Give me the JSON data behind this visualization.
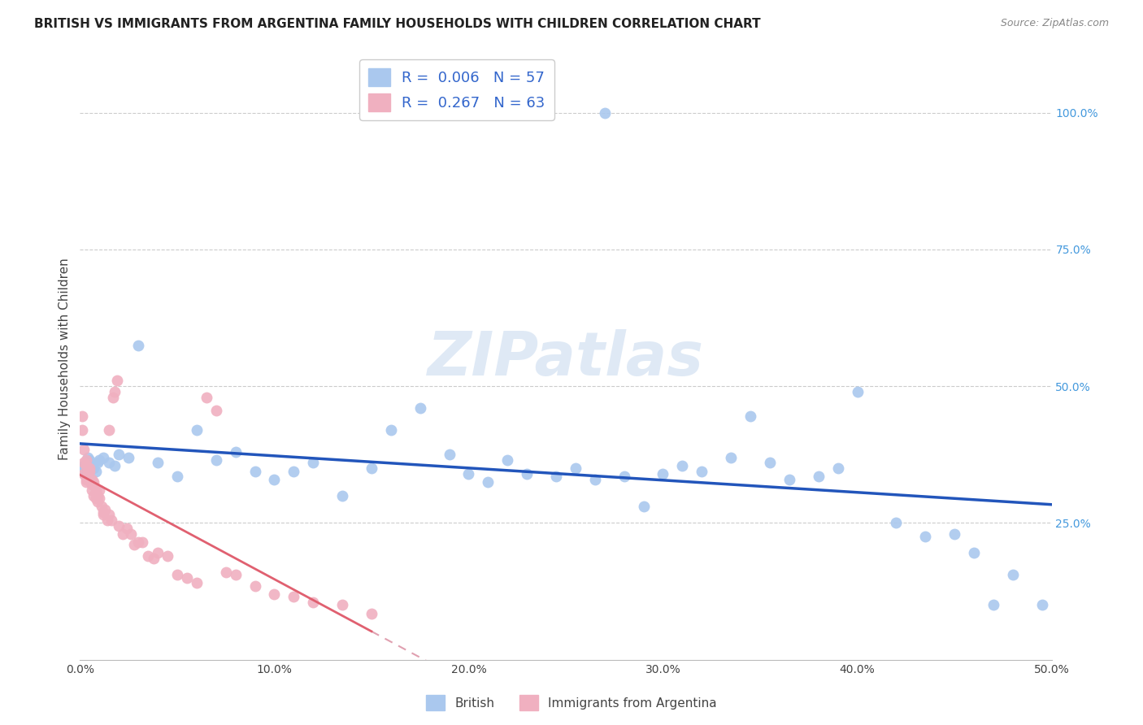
{
  "title": "BRITISH VS IMMIGRANTS FROM ARGENTINA FAMILY HOUSEHOLDS WITH CHILDREN CORRELATION CHART",
  "source": "Source: ZipAtlas.com",
  "ylabel": "Family Households with Children",
  "watermark": "ZIPatlas",
  "xlim": [
    0.0,
    0.5
  ],
  "ylim": [
    0.0,
    1.1
  ],
  "british_color": "#aac8ee",
  "argentina_color": "#f0b0c0",
  "british_line_color": "#2255bb",
  "argentina_line_color": "#e06070",
  "argentina_dash_color": "#e0a0b0",
  "background_color": "#ffffff",
  "grid_color": "#cccccc",
  "british_x": [
    0.001,
    0.002,
    0.003,
    0.004,
    0.005,
    0.006,
    0.007,
    0.008,
    0.009,
    0.01,
    0.012,
    0.015,
    0.018,
    0.02,
    0.025,
    0.03,
    0.04,
    0.05,
    0.06,
    0.07,
    0.08,
    0.09,
    0.1,
    0.11,
    0.12,
    0.135,
    0.15,
    0.16,
    0.175,
    0.19,
    0.2,
    0.21,
    0.22,
    0.23,
    0.245,
    0.255,
    0.265,
    0.27,
    0.28,
    0.29,
    0.3,
    0.31,
    0.32,
    0.335,
    0.345,
    0.355,
    0.365,
    0.38,
    0.39,
    0.4,
    0.42,
    0.435,
    0.45,
    0.46,
    0.47,
    0.48,
    0.495
  ],
  "british_y": [
    0.345,
    0.355,
    0.36,
    0.37,
    0.365,
    0.355,
    0.35,
    0.345,
    0.36,
    0.365,
    0.37,
    0.36,
    0.355,
    0.375,
    0.37,
    0.575,
    0.36,
    0.335,
    0.42,
    0.365,
    0.38,
    0.345,
    0.33,
    0.345,
    0.36,
    0.3,
    0.35,
    0.42,
    0.46,
    0.375,
    0.34,
    0.325,
    0.365,
    0.34,
    0.335,
    0.35,
    0.33,
    1.0,
    0.335,
    0.28,
    0.34,
    0.355,
    0.345,
    0.37,
    0.445,
    0.36,
    0.33,
    0.335,
    0.35,
    0.49,
    0.25,
    0.225,
    0.23,
    0.195,
    0.1,
    0.155,
    0.1
  ],
  "argentina_x": [
    0.001,
    0.001,
    0.002,
    0.002,
    0.002,
    0.003,
    0.003,
    0.003,
    0.003,
    0.004,
    0.004,
    0.004,
    0.005,
    0.005,
    0.005,
    0.006,
    0.006,
    0.006,
    0.007,
    0.007,
    0.007,
    0.008,
    0.008,
    0.008,
    0.009,
    0.009,
    0.01,
    0.01,
    0.011,
    0.012,
    0.012,
    0.013,
    0.014,
    0.015,
    0.015,
    0.016,
    0.017,
    0.018,
    0.019,
    0.02,
    0.022,
    0.024,
    0.026,
    0.028,
    0.03,
    0.032,
    0.035,
    0.038,
    0.04,
    0.045,
    0.05,
    0.055,
    0.06,
    0.065,
    0.07,
    0.075,
    0.08,
    0.09,
    0.1,
    0.11,
    0.12,
    0.135,
    0.15
  ],
  "argentina_y": [
    0.445,
    0.42,
    0.385,
    0.36,
    0.34,
    0.365,
    0.355,
    0.33,
    0.325,
    0.34,
    0.345,
    0.33,
    0.35,
    0.33,
    0.345,
    0.32,
    0.33,
    0.31,
    0.325,
    0.32,
    0.3,
    0.31,
    0.305,
    0.295,
    0.29,
    0.3,
    0.31,
    0.295,
    0.28,
    0.265,
    0.27,
    0.275,
    0.255,
    0.265,
    0.42,
    0.255,
    0.48,
    0.49,
    0.51,
    0.245,
    0.23,
    0.24,
    0.23,
    0.21,
    0.215,
    0.215,
    0.19,
    0.185,
    0.195,
    0.19,
    0.155,
    0.15,
    0.14,
    0.48,
    0.455,
    0.16,
    0.155,
    0.135,
    0.12,
    0.115,
    0.105,
    0.1,
    0.085
  ]
}
